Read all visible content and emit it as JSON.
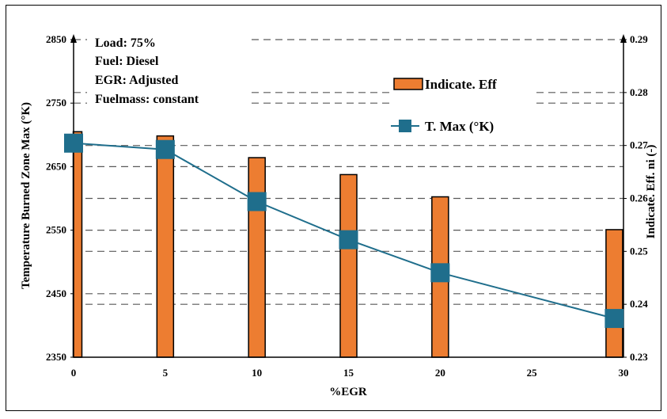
{
  "colors": {
    "bar_fill": "#ED7D31",
    "bar_stroke": "#000000",
    "line": "#1F6E8C",
    "marker": "#1F6E8C",
    "grid": "#595959",
    "axis": "#000000"
  },
  "annotations": [
    "Load: 75%",
    "Fuel: Diesel",
    "EGR: Adjusted",
    "Fuelmass: constant"
  ],
  "chart_data": {
    "type": "bar",
    "combo": "bar + line, dual y-axis",
    "xlabel": "%EGR",
    "ylabel_left": "Temperature Burned Zone Max (°K)",
    "ylabel_right": "Indicate. Eff. ni (-)",
    "x_ticks": [
      "0",
      "5",
      "10",
      "15",
      "20",
      "25",
      "30"
    ],
    "xlim": [
      0,
      30
    ],
    "y_left_ticks": [
      "2350",
      "2450",
      "2550",
      "2650",
      "2750",
      "2850"
    ],
    "ylim_left": [
      2350,
      2850
    ],
    "y_right_ticks": [
      "0.23",
      "0.24",
      "0.25",
      "0.26",
      "0.27",
      "0.28",
      "0.29"
    ],
    "ylim_right": [
      0.23,
      0.29
    ],
    "grid": "horizontal dashed",
    "legend_placement": "top-right",
    "series": [
      {
        "name": "Indicate. Eff",
        "type": "bar",
        "axis": "right",
        "x": [
          0,
          5,
          10,
          15,
          20,
          29.5
        ],
        "values": [
          0.2726,
          0.2718,
          0.2677,
          0.2645,
          0.2603,
          0.2541
        ]
      },
      {
        "name": "T. Max (°K)",
        "type": "line",
        "axis": "left",
        "marker": "square",
        "x": [
          0,
          5,
          10,
          15,
          20,
          29.5
        ],
        "values": [
          2687,
          2677,
          2595,
          2535,
          2483,
          2411
        ]
      }
    ]
  }
}
